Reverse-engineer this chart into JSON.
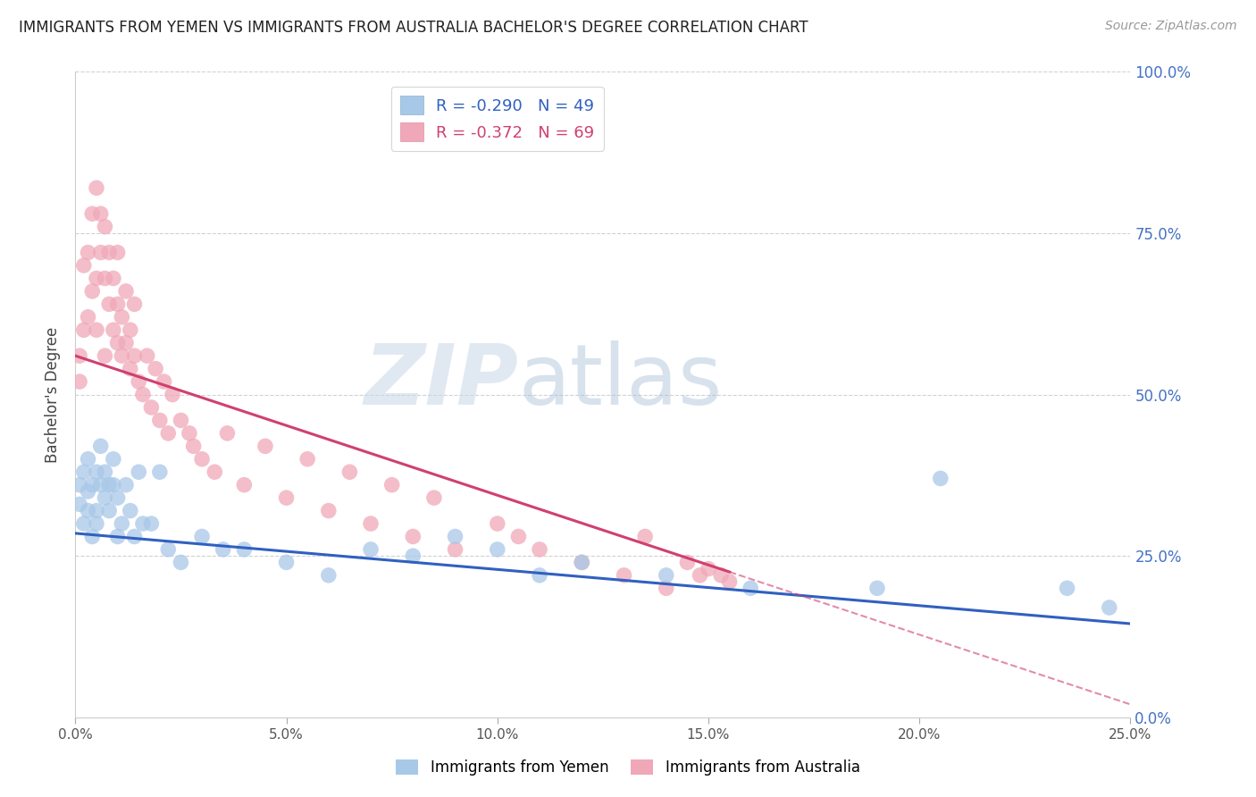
{
  "title": "IMMIGRANTS FROM YEMEN VS IMMIGRANTS FROM AUSTRALIA BACHELOR'S DEGREE CORRELATION CHART",
  "source": "Source: ZipAtlas.com",
  "ylabel": "Bachelor's Degree",
  "xlim": [
    0.0,
    0.25
  ],
  "ylim": [
    0.0,
    1.0
  ],
  "xticks": [
    0.0,
    0.05,
    0.1,
    0.15,
    0.2,
    0.25
  ],
  "yticks": [
    0.0,
    0.25,
    0.5,
    0.75,
    1.0
  ],
  "ytick_labels_right": [
    "0.0%",
    "25.0%",
    "50.0%",
    "75.0%",
    "100.0%"
  ],
  "xtick_labels": [
    "0.0%",
    "5.0%",
    "10.0%",
    "15.0%",
    "20.0%",
    "25.0%"
  ],
  "legend_label_yemen": "Immigrants from Yemen",
  "legend_label_australia": "Immigrants from Australia",
  "yemen_color": "#a8c8e8",
  "australia_color": "#f0a8b8",
  "yemen_line_color": "#3060c0",
  "australia_line_color": "#d04070",
  "watermark_zip": "ZIP",
  "watermark_atlas": "atlas",
  "yemen_R": -0.29,
  "yemen_N": 49,
  "australia_R": -0.372,
  "australia_N": 69,
  "yemen_line_x0": 0.0,
  "yemen_line_y0": 0.285,
  "yemen_line_x1": 0.25,
  "yemen_line_y1": 0.145,
  "australia_line_x0": 0.0,
  "australia_line_y0": 0.56,
  "australia_line_x1": 0.25,
  "australia_line_y1": 0.02,
  "australia_line_solid_end": 0.155,
  "yemen_scatter_x": [
    0.001,
    0.001,
    0.002,
    0.002,
    0.003,
    0.003,
    0.003,
    0.004,
    0.004,
    0.005,
    0.005,
    0.005,
    0.006,
    0.006,
    0.007,
    0.007,
    0.008,
    0.008,
    0.009,
    0.009,
    0.01,
    0.01,
    0.011,
    0.012,
    0.013,
    0.014,
    0.015,
    0.016,
    0.018,
    0.02,
    0.022,
    0.025,
    0.03,
    0.035,
    0.04,
    0.05,
    0.06,
    0.07,
    0.08,
    0.09,
    0.1,
    0.11,
    0.12,
    0.14,
    0.16,
    0.19,
    0.205,
    0.235,
    0.245
  ],
  "yemen_scatter_y": [
    0.33,
    0.36,
    0.3,
    0.38,
    0.35,
    0.32,
    0.4,
    0.28,
    0.36,
    0.32,
    0.38,
    0.3,
    0.36,
    0.42,
    0.38,
    0.34,
    0.36,
    0.32,
    0.4,
    0.36,
    0.34,
    0.28,
    0.3,
    0.36,
    0.32,
    0.28,
    0.38,
    0.3,
    0.3,
    0.38,
    0.26,
    0.24,
    0.28,
    0.26,
    0.26,
    0.24,
    0.22,
    0.26,
    0.25,
    0.28,
    0.26,
    0.22,
    0.24,
    0.22,
    0.2,
    0.2,
    0.37,
    0.2,
    0.17
  ],
  "australia_scatter_x": [
    0.001,
    0.001,
    0.002,
    0.002,
    0.003,
    0.003,
    0.004,
    0.004,
    0.005,
    0.005,
    0.005,
    0.006,
    0.006,
    0.007,
    0.007,
    0.007,
    0.008,
    0.008,
    0.009,
    0.009,
    0.01,
    0.01,
    0.01,
    0.011,
    0.011,
    0.012,
    0.012,
    0.013,
    0.013,
    0.014,
    0.014,
    0.015,
    0.016,
    0.017,
    0.018,
    0.019,
    0.02,
    0.021,
    0.022,
    0.023,
    0.025,
    0.027,
    0.028,
    0.03,
    0.033,
    0.036,
    0.04,
    0.045,
    0.05,
    0.055,
    0.06,
    0.065,
    0.07,
    0.075,
    0.08,
    0.085,
    0.09,
    0.1,
    0.105,
    0.11,
    0.12,
    0.13,
    0.135,
    0.14,
    0.145,
    0.148,
    0.15,
    0.153,
    0.155
  ],
  "australia_scatter_y": [
    0.52,
    0.56,
    0.6,
    0.7,
    0.62,
    0.72,
    0.66,
    0.78,
    0.68,
    0.82,
    0.6,
    0.72,
    0.78,
    0.56,
    0.68,
    0.76,
    0.64,
    0.72,
    0.6,
    0.68,
    0.58,
    0.64,
    0.72,
    0.56,
    0.62,
    0.58,
    0.66,
    0.54,
    0.6,
    0.56,
    0.64,
    0.52,
    0.5,
    0.56,
    0.48,
    0.54,
    0.46,
    0.52,
    0.44,
    0.5,
    0.46,
    0.44,
    0.42,
    0.4,
    0.38,
    0.44,
    0.36,
    0.42,
    0.34,
    0.4,
    0.32,
    0.38,
    0.3,
    0.36,
    0.28,
    0.34,
    0.26,
    0.3,
    0.28,
    0.26,
    0.24,
    0.22,
    0.28,
    0.2,
    0.24,
    0.22,
    0.23,
    0.22,
    0.21
  ]
}
